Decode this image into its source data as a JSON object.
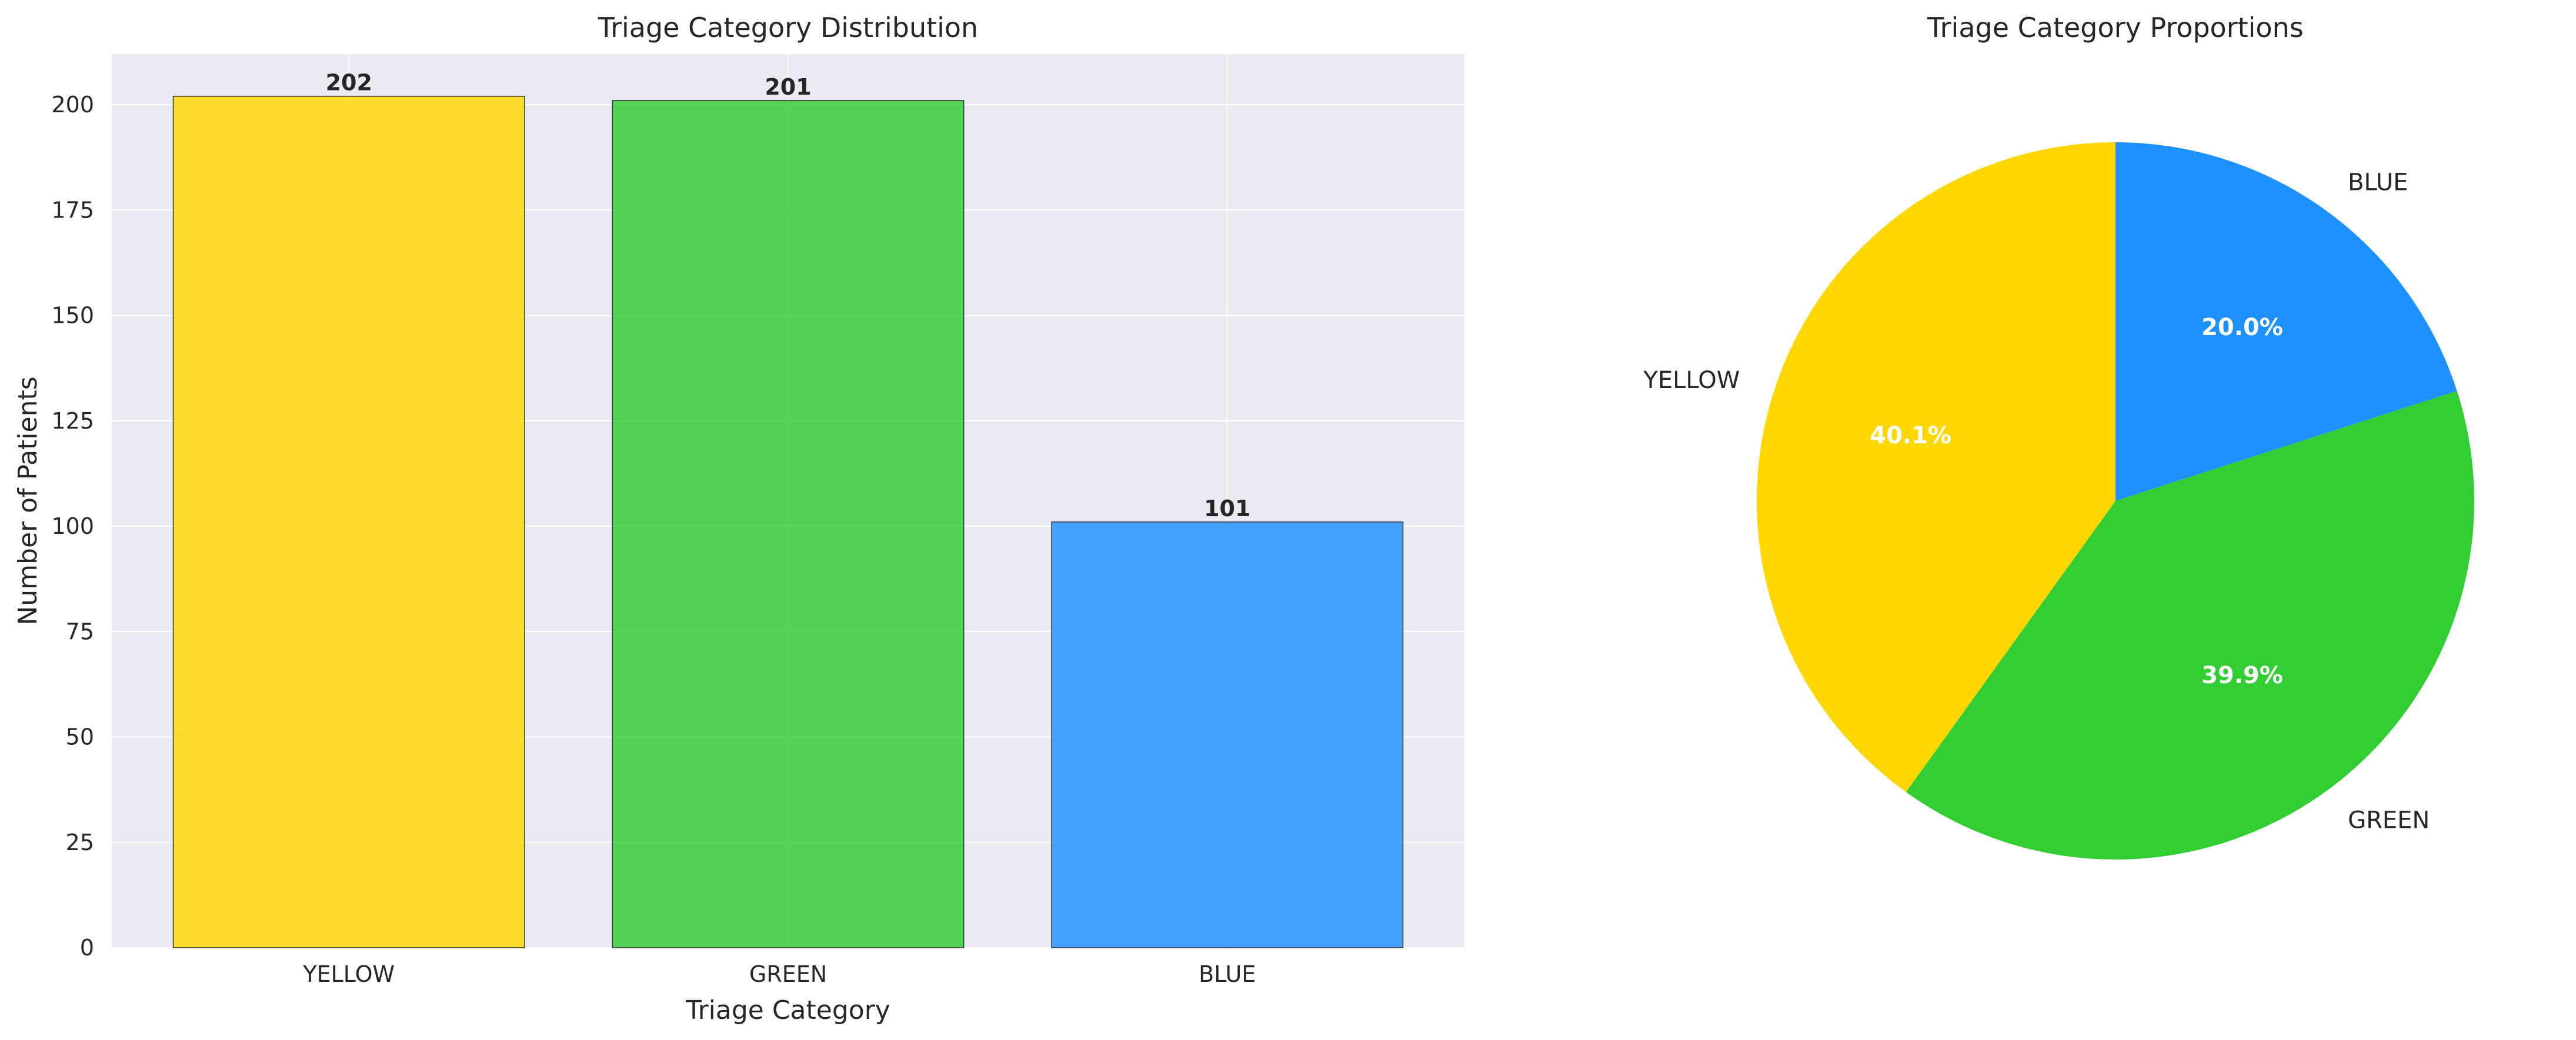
{
  "chart_data": [
    {
      "type": "bar",
      "title": "Triage Category Distribution",
      "xlabel": "Triage Category",
      "ylabel": "Number of Patients",
      "categories": [
        "YELLOW",
        "GREEN",
        "BLUE"
      ],
      "values": [
        202,
        201,
        101
      ],
      "data_labels": [
        "202",
        "201",
        "101"
      ],
      "colors": [
        "#FFD700",
        "#32CD32",
        "#1E90FF"
      ],
      "ylim": [
        0,
        212
      ],
      "yticks": [
        0,
        25,
        50,
        75,
        100,
        125,
        150,
        175,
        200
      ],
      "grid": true
    },
    {
      "type": "pie",
      "title": "Triage Category Proportions",
      "labels": [
        "YELLOW",
        "GREEN",
        "BLUE"
      ],
      "values": [
        202,
        201,
        101
      ],
      "percent_labels": [
        "40.1%",
        "39.9%",
        "20.0%"
      ],
      "colors": [
        "#FFD700",
        "#32CD32",
        "#1E90FF"
      ]
    }
  ]
}
